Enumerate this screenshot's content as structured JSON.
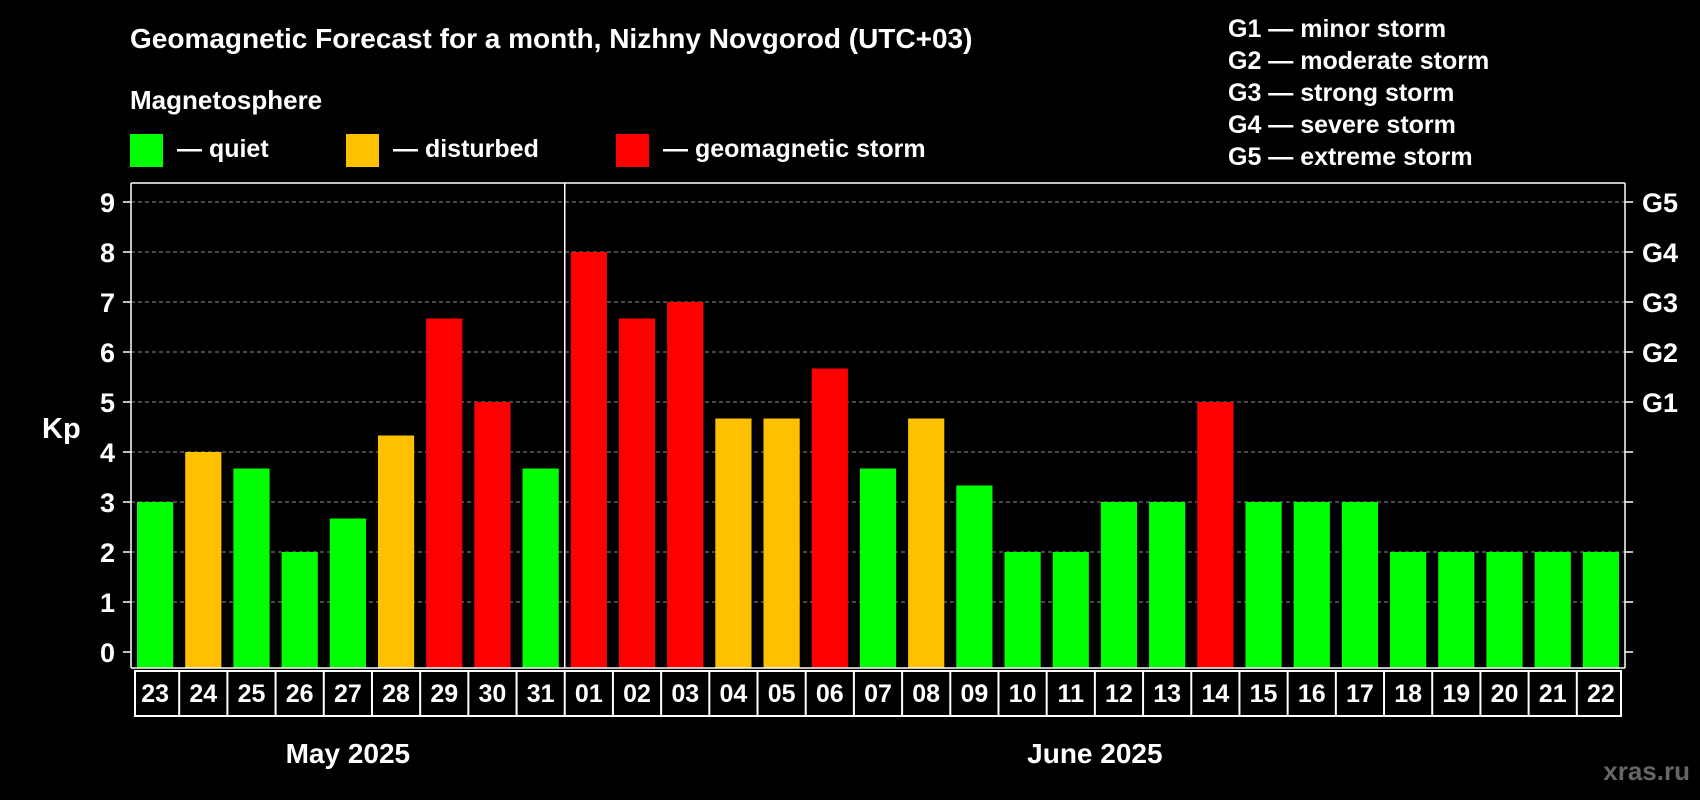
{
  "title": "Geomagnetic Forecast for a month, Nizhny Novgorod (UTC+03)",
  "legend": {
    "heading": "Magnetosphere",
    "items": [
      {
        "label": "— quiet",
        "color": "#00ff00"
      },
      {
        "label": "— disturbed",
        "color": "#ffc000"
      },
      {
        "label": "— geomagnetic storm",
        "color": "#ff0000"
      }
    ]
  },
  "storm_scale": [
    "G1 — minor storm",
    "G2 — moderate storm",
    "G3 — strong storm",
    "G4 — severe storm",
    "G5 — extreme storm"
  ],
  "watermark": "xras.ru",
  "chart_data": {
    "type": "bar",
    "ylabel": "Kp",
    "ylim": [
      0,
      9
    ],
    "yticks": [
      "0",
      "1",
      "2",
      "3",
      "4",
      "5",
      "6",
      "7",
      "8",
      "9"
    ],
    "right_axis": [
      {
        "kp": 5,
        "label": "G1"
      },
      {
        "kp": 6,
        "label": "G2"
      },
      {
        "kp": 7,
        "label": "G3"
      },
      {
        "kp": 8,
        "label": "G4"
      },
      {
        "kp": 9,
        "label": "G5"
      }
    ],
    "grid": true,
    "categories": [
      "23",
      "24",
      "25",
      "26",
      "27",
      "28",
      "29",
      "30",
      "31",
      "01",
      "02",
      "03",
      "04",
      "05",
      "06",
      "07",
      "08",
      "09",
      "10",
      "11",
      "12",
      "13",
      "14",
      "15",
      "16",
      "17",
      "18",
      "19",
      "20",
      "21",
      "22"
    ],
    "values": [
      3,
      4,
      3.67,
      2,
      2.67,
      4.33,
      6.67,
      5,
      3.67,
      8,
      6.67,
      7,
      4.67,
      4.67,
      5.67,
      3.67,
      4.67,
      3.33,
      2,
      2,
      3,
      3,
      5,
      3,
      3,
      3,
      2,
      2,
      2,
      2,
      2
    ],
    "status": [
      "quiet",
      "disturbed",
      "quiet",
      "quiet",
      "quiet",
      "disturbed",
      "storm",
      "storm",
      "quiet",
      "storm",
      "storm",
      "storm",
      "disturbed",
      "disturbed",
      "storm",
      "quiet",
      "disturbed",
      "quiet",
      "quiet",
      "quiet",
      "quiet",
      "quiet",
      "storm",
      "quiet",
      "quiet",
      "quiet",
      "quiet",
      "quiet",
      "quiet",
      "quiet",
      "quiet"
    ],
    "status_colors": {
      "quiet": "#00ff00",
      "disturbed": "#ffc000",
      "storm": "#ff0000"
    },
    "month_groups": [
      {
        "label": "May 2025",
        "count": 9
      },
      {
        "label": "June 2025",
        "count": 22
      }
    ]
  }
}
